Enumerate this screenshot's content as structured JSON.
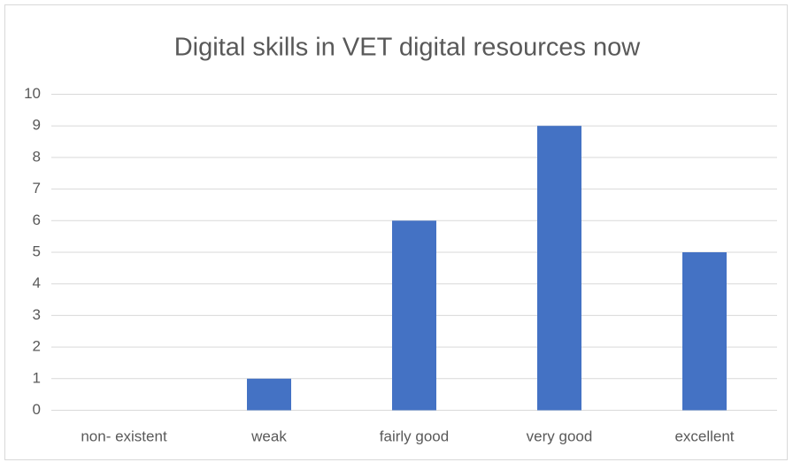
{
  "chart_data": {
    "type": "bar",
    "title": "Digital skills in VET digital resources now",
    "categories": [
      "non- existent",
      "weak",
      "fairly good",
      "very good",
      "excellent"
    ],
    "values": [
      0,
      1,
      6,
      9,
      5
    ],
    "color": "#4472c4",
    "ylim": [
      0,
      10
    ],
    "yticks": [
      0,
      1,
      2,
      3,
      4,
      5,
      6,
      7,
      8,
      9,
      10
    ],
    "grid": true
  }
}
